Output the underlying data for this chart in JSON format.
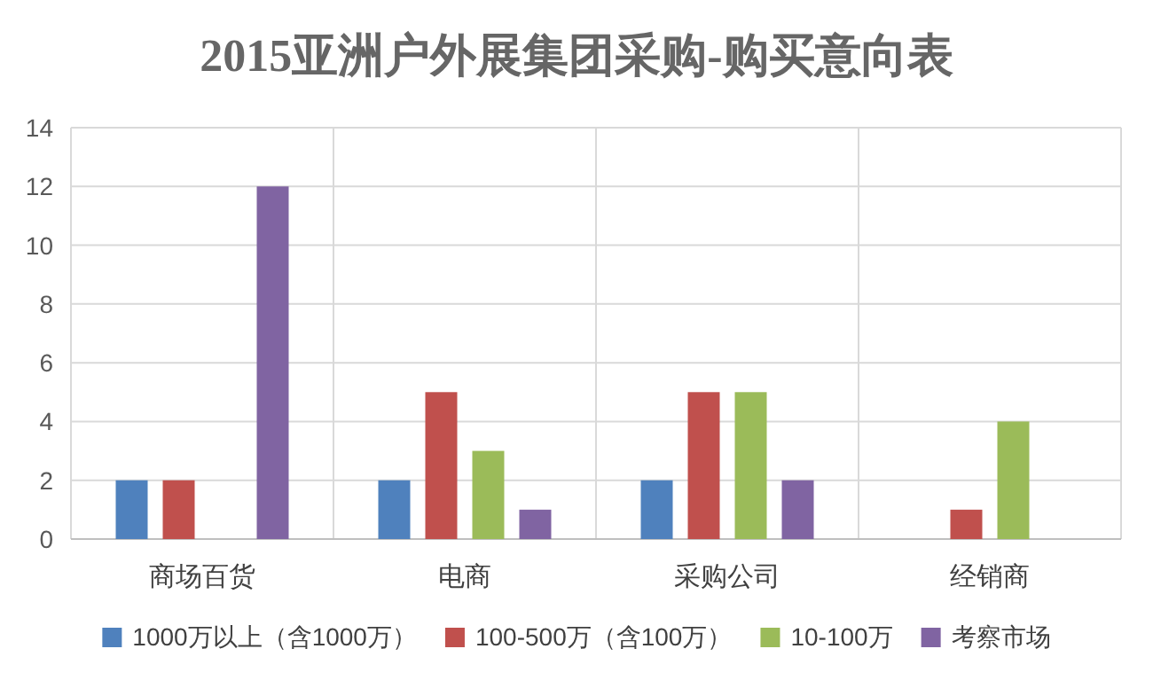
{
  "chart_data": {
    "type": "bar",
    "title": "2015亚洲户外展集团采购-购买意向表",
    "categories": [
      "商场百货",
      "电商",
      "采购公司",
      "经销商"
    ],
    "series": [
      {
        "name": "1000万以上（含1000万）",
        "color": "#4f81bd",
        "values": [
          2,
          2,
          2,
          null
        ]
      },
      {
        "name": "100-500万（含100万）",
        "color": "#c0504d",
        "values": [
          2,
          5,
          5,
          1
        ]
      },
      {
        "name": "10-100万",
        "color": "#9bbb59",
        "values": [
          null,
          3,
          5,
          4
        ]
      },
      {
        "name": "考察市场",
        "color": "#8064a2",
        "values": [
          12,
          1,
          2,
          null
        ]
      }
    ],
    "ylim": [
      0,
      14
    ],
    "yticks": [
      0,
      2,
      4,
      6,
      8,
      10,
      12,
      14
    ],
    "grid": true,
    "legend": "bottom"
  }
}
